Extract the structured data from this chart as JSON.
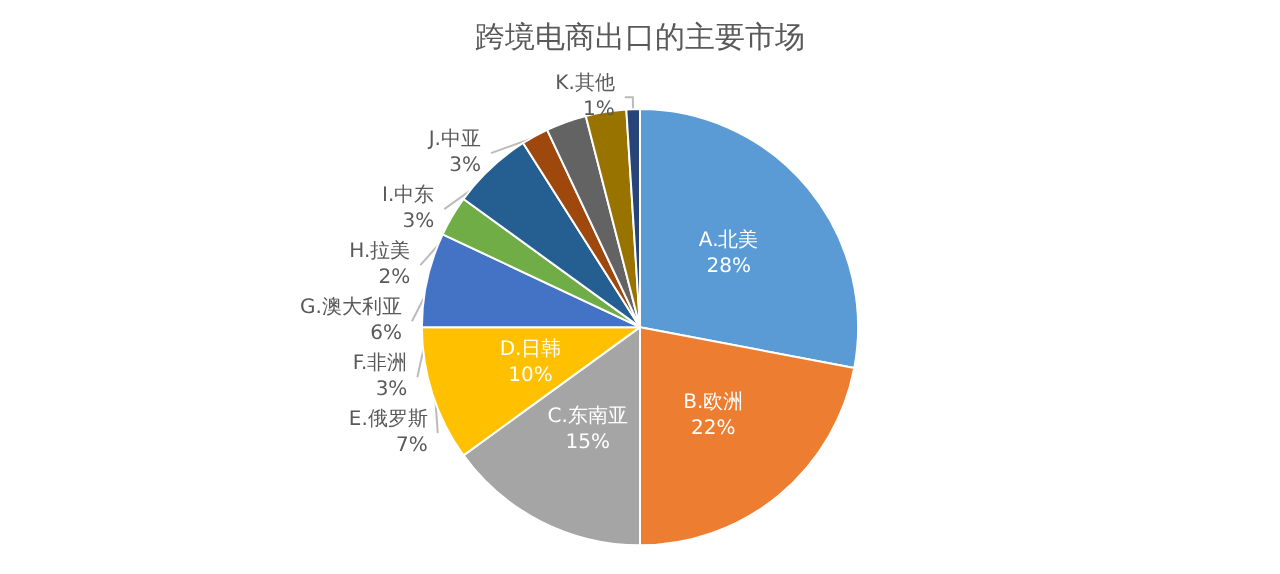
{
  "chart_data": {
    "type": "pie",
    "title": "跨境电商出口的主要市场",
    "categories": [
      "A.北美",
      "B.欧洲",
      "C.东南亚",
      "D.日韩",
      "E.俄罗斯",
      "F.非洲",
      "G.澳大利亚",
      "H.拉美",
      "I.中东",
      "J.中亚",
      "K.其他"
    ],
    "values": [
      28,
      22,
      15,
      10,
      7,
      3,
      6,
      2,
      3,
      3,
      1
    ],
    "value_labels": [
      "28%",
      "22%",
      "15%",
      "10%",
      "7%",
      "3%",
      "6%",
      "2%",
      "3%",
      "3%",
      "1%"
    ],
    "colors": [
      "#5b9bd5",
      "#ed7d31",
      "#a5a5a5",
      "#ffc000",
      "#4472c4",
      "#70ad47",
      "#255e91",
      "#9e480e",
      "#636363",
      "#997300",
      "#264478"
    ],
    "legend": false
  }
}
